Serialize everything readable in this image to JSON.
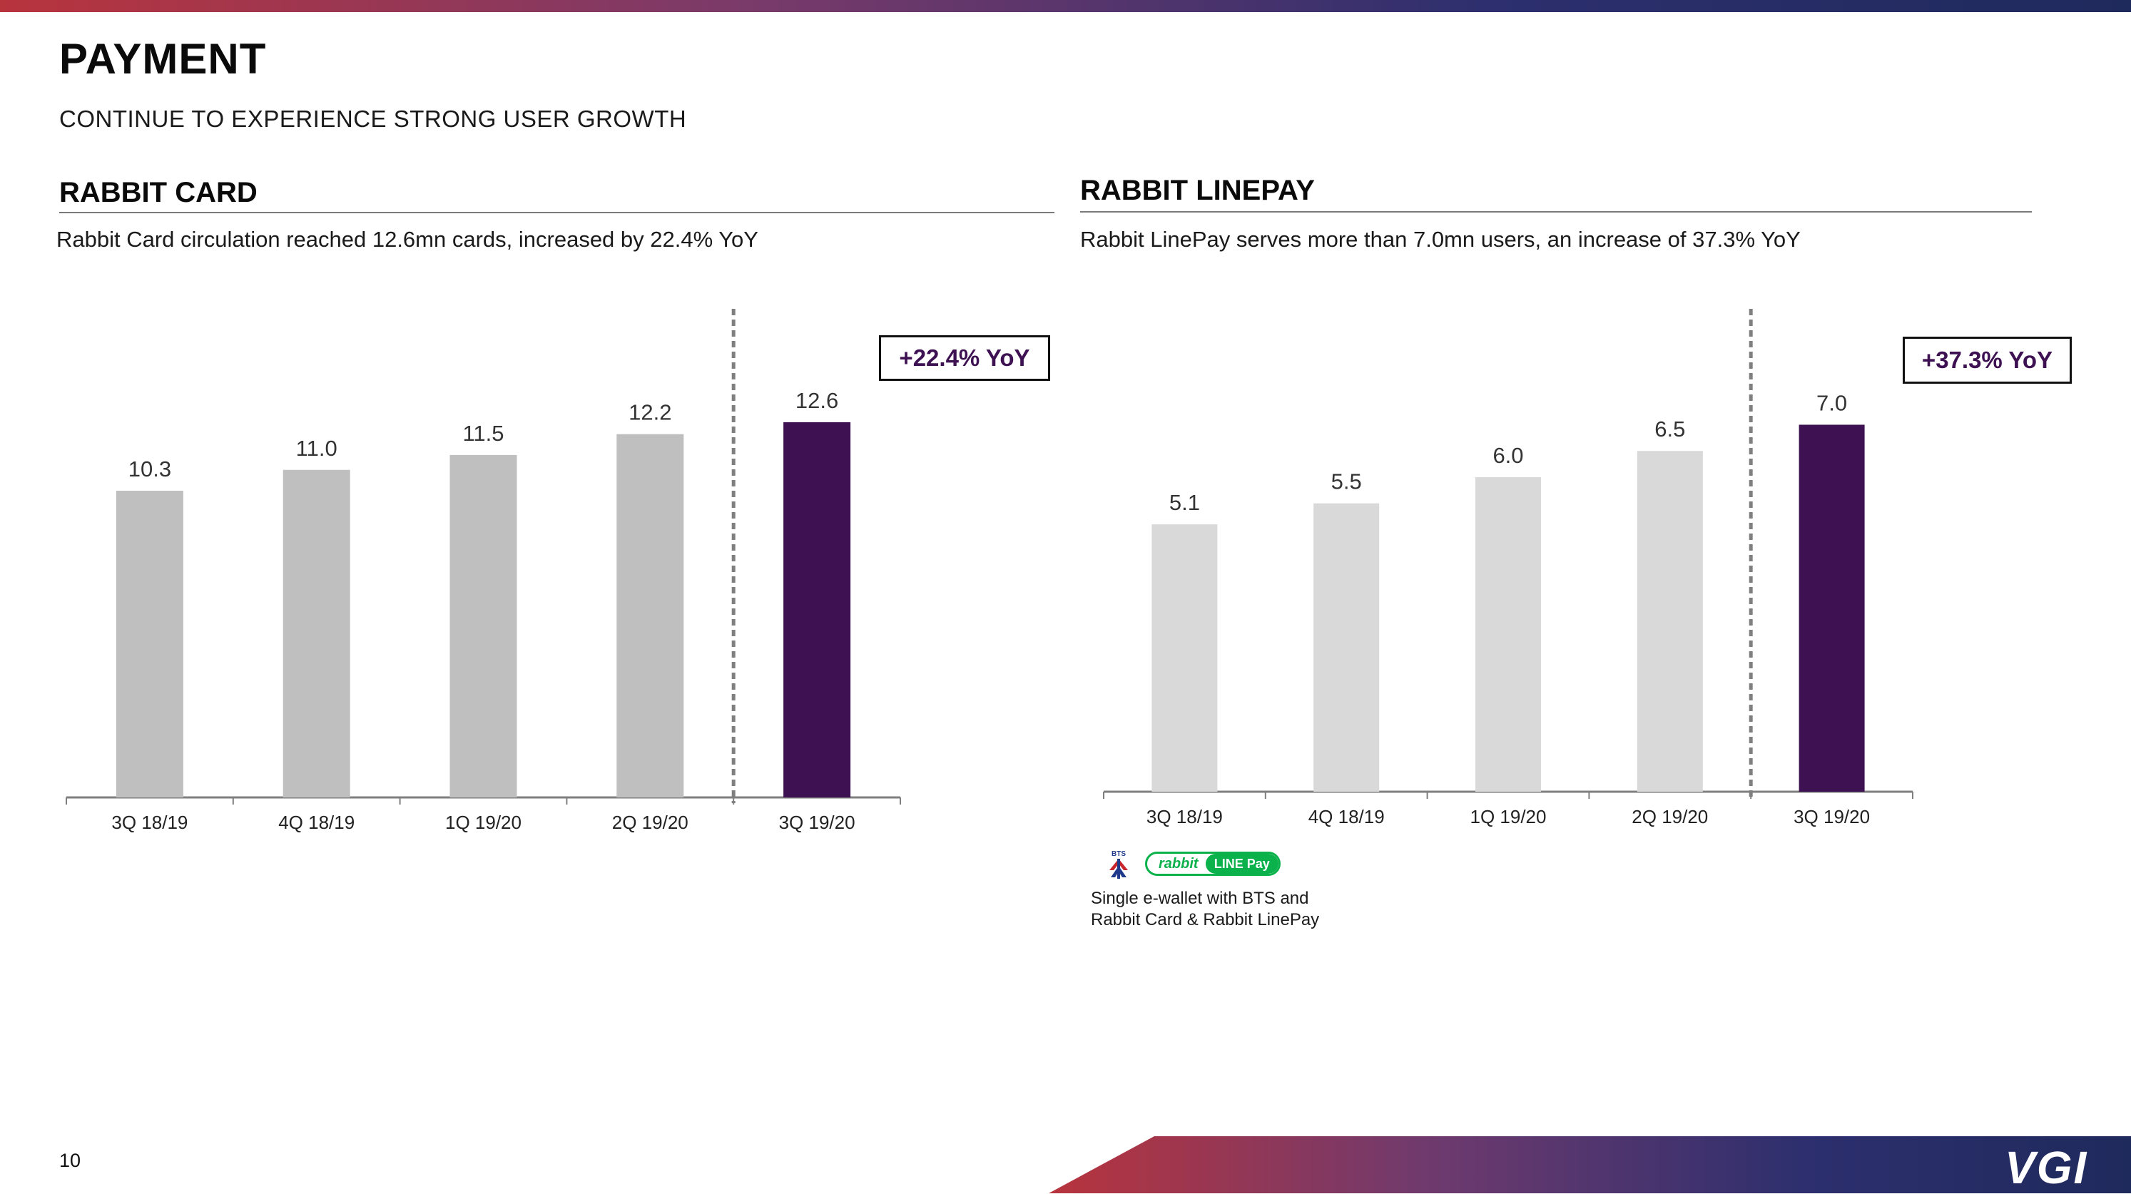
{
  "page": {
    "title": "PAYMENT",
    "subtitle": "CONTINUE TO EXPERIENCE STRONG USER GROWTH",
    "page_number": "10",
    "logo_text": "VGI"
  },
  "colors": {
    "highlight": "#3d1152",
    "card_bars": "#bfbfbf",
    "linepay_bars": "#d9d9d9",
    "axis": "#7f7f7f",
    "brand_gradient": [
      "#b8343d",
      "#7a3a6a",
      "#2d2f6e",
      "#1f2a5c"
    ]
  },
  "sections": {
    "rabbit_card": {
      "title": "RABBIT CARD",
      "description": "Rabbit Card circulation reached 12.6mn cards, increased by 22.4% YoY",
      "yoy_badge": "+22.4% YoY"
    },
    "rabbit_linepay": {
      "title": "RABBIT LINEPAY",
      "description": "Rabbit LinePay serves more than 7.0mn users, an increase of 37.3% YoY",
      "yoy_badge": "+37.3% YoY",
      "wallet_logo": {
        "bts_text": "BTS",
        "rabbit_text": "rabbit",
        "linepay_text": "LINE Pay",
        "icon": "rabbit-linepay-logo"
      },
      "wallet_caption": "Single e-wallet with BTS and Rabbit Card & Rabbit LinePay"
    }
  },
  "chart_data": [
    {
      "type": "bar",
      "categories": [
        "3Q 18/19",
        "4Q 18/19",
        "1Q 19/20",
        "2Q 19/20",
        "3Q 19/20"
      ],
      "values": [
        10.3,
        11.0,
        11.5,
        12.2,
        12.6
      ],
      "value_labels": [
        "10.3",
        "11.0",
        "11.5",
        "12.2",
        "12.6"
      ],
      "highlight_index": 4,
      "divider_before_index": 4,
      "ylim": [
        0,
        14.3
      ],
      "title": "",
      "xlabel": "",
      "ylabel": "",
      "grid": false,
      "legend": "none",
      "annotation": "+22.4% YoY"
    },
    {
      "type": "bar",
      "categories": [
        "3Q 18/19",
        "4Q 18/19",
        "1Q 19/20",
        "2Q 19/20",
        "3Q 19/20"
      ],
      "values": [
        5.1,
        5.5,
        6.0,
        6.5,
        7.0
      ],
      "value_labels": [
        "5.1",
        "5.5",
        "6.0",
        "6.5",
        "7.0"
      ],
      "highlight_index": 4,
      "divider_before_index": 4,
      "ylim": [
        0,
        7.85
      ],
      "title": "",
      "xlabel": "",
      "ylabel": "",
      "grid": false,
      "legend": "none",
      "annotation": "+37.3% YoY"
    }
  ]
}
